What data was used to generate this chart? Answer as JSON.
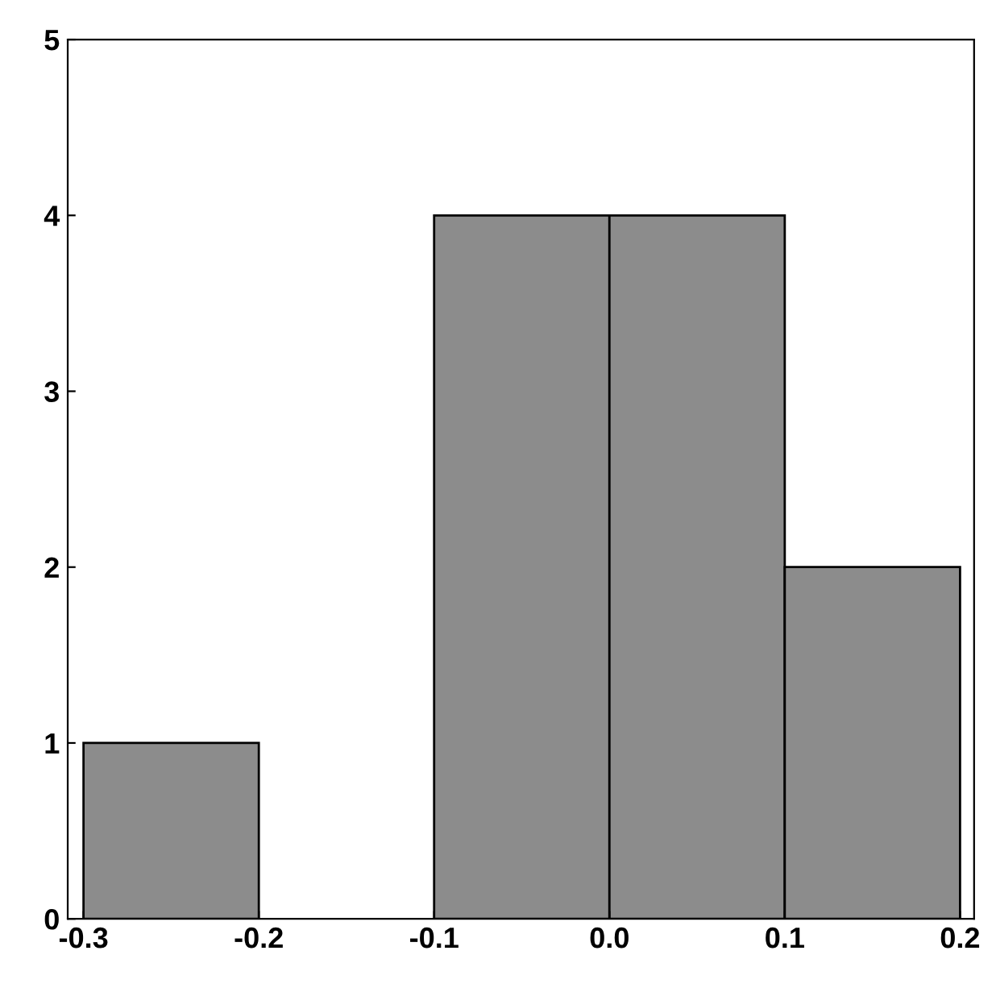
{
  "chart_data": {
    "type": "histogram",
    "bins": [
      -0.3,
      -0.2,
      -0.1,
      0.0,
      0.1,
      0.2
    ],
    "values": [
      1,
      0,
      4,
      4,
      2
    ],
    "color": "#8c8c8c",
    "xlim": [
      -0.309,
      0.208
    ],
    "ylim": [
      0,
      5
    ],
    "xticks": [
      -0.3,
      -0.2,
      -0.1,
      {
        "value": 0.0,
        "label": "0.0"
      },
      0.1,
      0.2
    ],
    "yticks": [
      0,
      1,
      2,
      3,
      4,
      5
    ],
    "grid": false
  }
}
